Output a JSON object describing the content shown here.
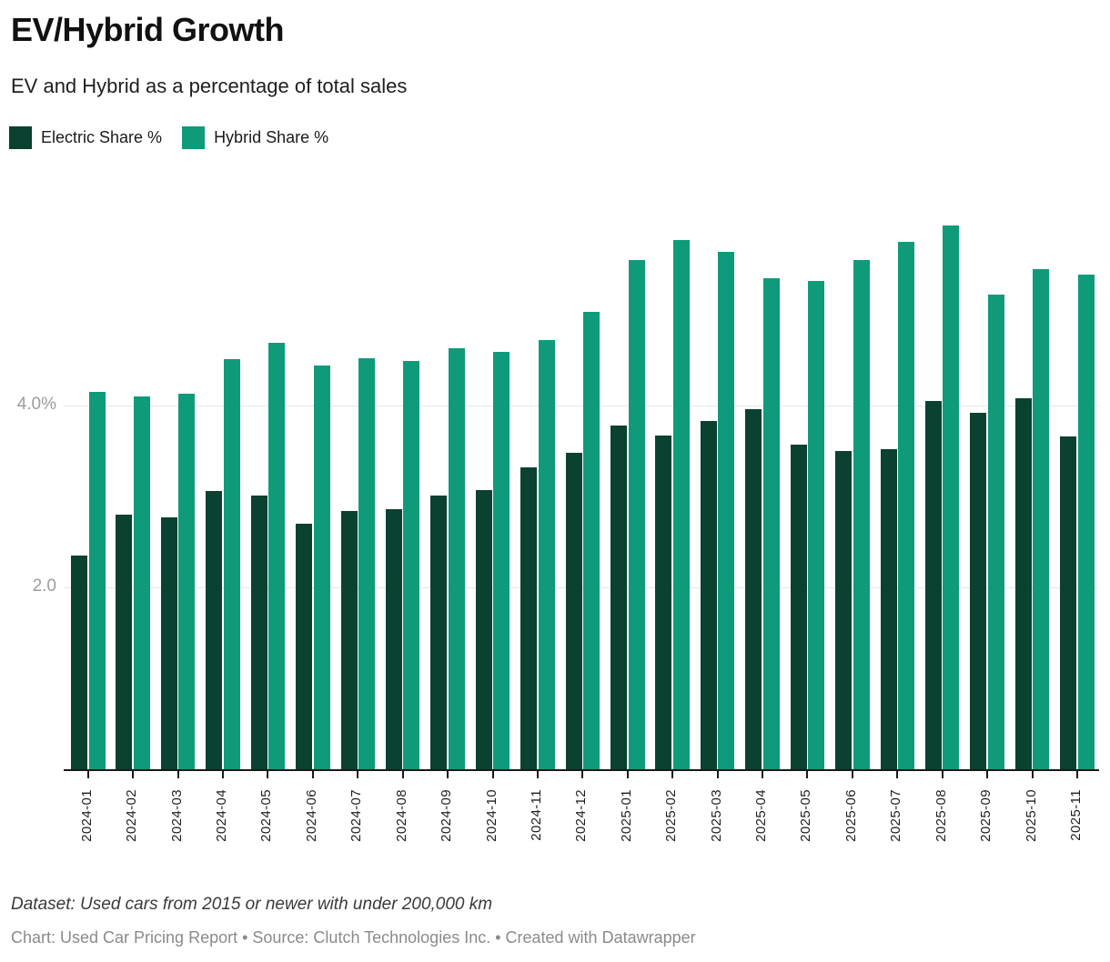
{
  "header": {
    "title": "EV/Hybrid Growth",
    "subtitle": "EV and Hybrid as a percentage of total sales"
  },
  "chart_data": {
    "type": "bar",
    "title": "EV/Hybrid Growth",
    "subtitle": "EV and Hybrid as a percentage of total sales",
    "categories": [
      "2024-01",
      "2024-02",
      "2024-03",
      "2024-04",
      "2024-05",
      "2024-06",
      "2024-07",
      "2024-08",
      "2024-09",
      "2024-10",
      "2024-11",
      "2024-12",
      "2025-01",
      "2025-02",
      "2025-03",
      "2025-04",
      "2025-05",
      "2025-06",
      "2025-07",
      "2025-08",
      "2025-09",
      "2025-10",
      "2025-11"
    ],
    "series": [
      {
        "name": "Electric Share %",
        "color": "#0a4130",
        "values": [
          2.35,
          2.8,
          2.77,
          3.06,
          3.01,
          2.7,
          2.84,
          2.86,
          3.01,
          3.07,
          3.32,
          3.48,
          3.78,
          3.67,
          3.83,
          3.96,
          3.57,
          3.5,
          3.52,
          4.05,
          3.92,
          4.08,
          3.66
        ]
      },
      {
        "name": "Hybrid Share %",
        "color": "#0f9b7a",
        "values": [
          4.15,
          4.1,
          4.13,
          4.51,
          4.69,
          4.44,
          4.52,
          4.49,
          4.63,
          4.59,
          4.72,
          5.03,
          5.6,
          5.82,
          5.69,
          5.4,
          5.37,
          5.6,
          5.8,
          5.98,
          5.22,
          5.5,
          5.44
        ]
      }
    ],
    "xlabel": "",
    "ylabel": "",
    "ylim": [
      0,
      6.2
    ],
    "y_ticks": [
      {
        "value": 2.0,
        "label": "2.0"
      },
      {
        "value": 4.0,
        "label": "4.0%"
      }
    ],
    "grid": "horizontal",
    "legend_position": "top-left"
  },
  "footer": {
    "dataset_note": "Dataset: Used cars from 2015 or newer with under 200,000 km",
    "attribution": "Chart: Used Car Pricing Report • Source: Clutch Technologies Inc. • Created with Datawrapper"
  }
}
